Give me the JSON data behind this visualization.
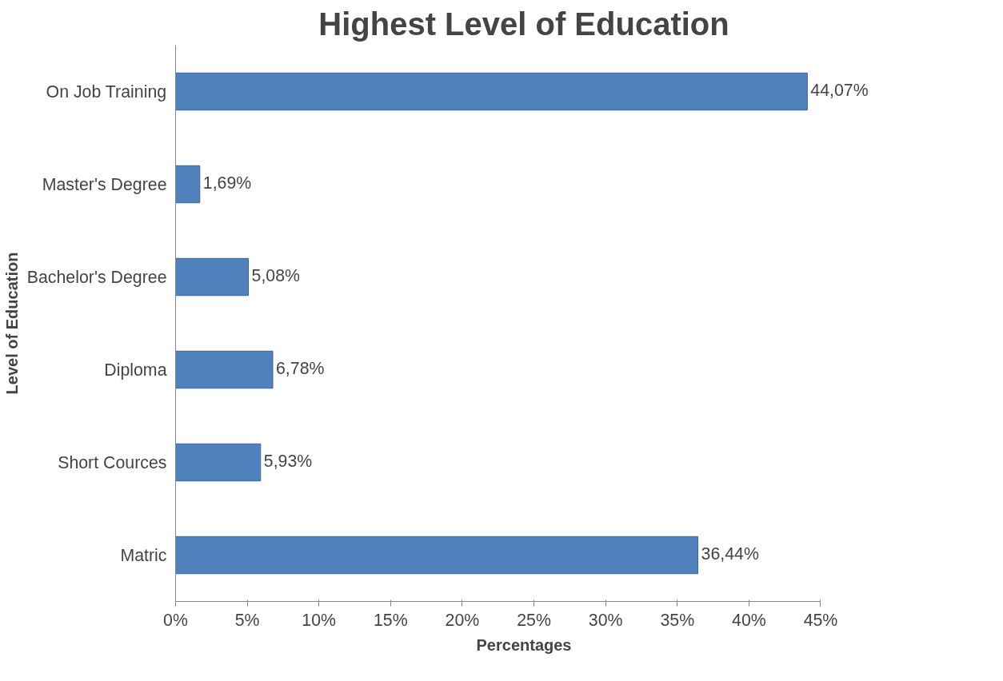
{
  "chart_data": {
    "type": "bar",
    "orientation": "horizontal",
    "title": "Highest Level of Education",
    "xlabel": "Percentages",
    "ylabel": "Level of Education",
    "categories": [
      "On Job Training",
      "Master's Degree",
      "Bachelor's Degree",
      "Diploma",
      "Short Cources",
      "Matric"
    ],
    "values": [
      44.07,
      1.69,
      5.08,
      6.78,
      5.93,
      36.44
    ],
    "value_labels": [
      "44,07%",
      "1,69%",
      "5,08%",
      "6,78%",
      "5,93%",
      "36,44%"
    ],
    "color": "#4f81bd",
    "xlim": [
      0,
      45
    ],
    "xticks": [
      {
        "value": 0,
        "label": "0%"
      },
      {
        "value": 5,
        "label": "5%"
      },
      {
        "value": 10,
        "label": "10%"
      },
      {
        "value": 15,
        "label": "15%"
      },
      {
        "value": 20,
        "label": "20%"
      },
      {
        "value": 25,
        "label": "25%"
      },
      {
        "value": 30,
        "label": "30%"
      },
      {
        "value": 35,
        "label": "35%"
      },
      {
        "value": 40,
        "label": "40%"
      },
      {
        "value": 45,
        "label": "45%"
      }
    ],
    "grid": false
  }
}
